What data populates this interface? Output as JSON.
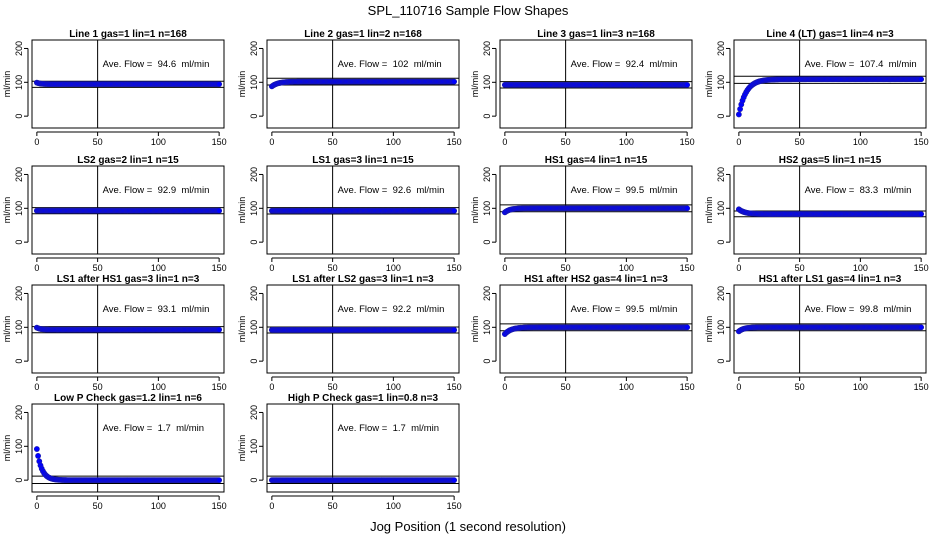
{
  "figure": {
    "title": "SPL_110716  Sample Flow Shapes",
    "xlabel": "Jog Position (1 second resolution)"
  },
  "chart_data": [
    {
      "type": "scatter",
      "title": "Line 1 gas=1 lin=1 n=168",
      "annotation": "Ave. Flow =  94.6  ml/min",
      "ylabel": "ml/min",
      "xticks": [
        0,
        50,
        100,
        150
      ],
      "yticks": [
        0,
        100,
        200
      ],
      "xlim": [
        -4,
        154
      ],
      "ylim": [
        -35,
        225
      ],
      "vline": 50,
      "hlines": [
        85,
        103
      ],
      "marker_color": "#0000ff",
      "shape": "flat",
      "start_y": 99,
      "plateau_y": 94.6,
      "tau": 3
    },
    {
      "type": "scatter",
      "title": "Line 2 gas=1 lin=2 n=168",
      "annotation": "Ave. Flow =  102  ml/min",
      "ylabel": "ml/min",
      "xticks": [
        0,
        50,
        100,
        150
      ],
      "yticks": [
        0,
        100,
        200
      ],
      "xlim": [
        -4,
        154
      ],
      "ylim": [
        -35,
        225
      ],
      "vline": 50,
      "hlines": [
        92,
        112
      ],
      "marker_color": "#0000ff",
      "shape": "rise",
      "start_y": 88,
      "plateau_y": 102,
      "tau": 5
    },
    {
      "type": "scatter",
      "title": "Line 3 gas=1 lin=3 n=168",
      "annotation": "Ave. Flow =  92.4  ml/min",
      "ylabel": "ml/min",
      "xticks": [
        0,
        50,
        100,
        150
      ],
      "yticks": [
        0,
        100,
        200
      ],
      "xlim": [
        -4,
        154
      ],
      "ylim": [
        -35,
        225
      ],
      "vline": 50,
      "hlines": [
        83,
        102
      ],
      "marker_color": "#0000ff",
      "shape": "flat",
      "start_y": 92.4,
      "plateau_y": 92.4,
      "tau": 3
    },
    {
      "type": "scatter",
      "title": "Line 4 (LT) gas=1 lin=4 n=3",
      "annotation": "Ave. Flow =  107.4  ml/min",
      "ylabel": "ml/min",
      "xticks": [
        0,
        50,
        100,
        150
      ],
      "yticks": [
        0,
        100,
        200
      ],
      "xlim": [
        -4,
        154
      ],
      "ylim": [
        -35,
        225
      ],
      "vline": 50,
      "hlines": [
        97,
        118
      ],
      "marker_color": "#0000ff",
      "shape": "rise",
      "start_y": 5,
      "plateau_y": 109,
      "tau": 6
    },
    {
      "type": "scatter",
      "title": "LS2 gas=2 lin=1 n=15",
      "annotation": "Ave. Flow =  92.9  ml/min",
      "ylabel": "ml/min",
      "xticks": [
        0,
        50,
        100,
        150
      ],
      "yticks": [
        0,
        100,
        200
      ],
      "xlim": [
        -4,
        154
      ],
      "ylim": [
        -35,
        225
      ],
      "vline": 50,
      "hlines": [
        84,
        102
      ],
      "marker_color": "#0000ff",
      "shape": "flat",
      "start_y": 92.9,
      "plateau_y": 92.9,
      "tau": 3
    },
    {
      "type": "scatter",
      "title": "LS1 gas=3 lin=1 n=15",
      "annotation": "Ave. Flow =  92.6  ml/min",
      "ylabel": "ml/min",
      "xticks": [
        0,
        50,
        100,
        150
      ],
      "yticks": [
        0,
        100,
        200
      ],
      "xlim": [
        -4,
        154
      ],
      "ylim": [
        -35,
        225
      ],
      "vline": 50,
      "hlines": [
        83,
        102
      ],
      "marker_color": "#0000ff",
      "shape": "flat",
      "start_y": 92.6,
      "plateau_y": 92.6,
      "tau": 3
    },
    {
      "type": "scatter",
      "title": "HS1 gas=4 lin=1 n=15",
      "annotation": "Ave. Flow =  99.5  ml/min",
      "ylabel": "ml/min",
      "xticks": [
        0,
        50,
        100,
        150
      ],
      "yticks": [
        0,
        100,
        200
      ],
      "xlim": [
        -4,
        154
      ],
      "ylim": [
        -35,
        225
      ],
      "vline": 50,
      "hlines": [
        90,
        110
      ],
      "marker_color": "#0000ff",
      "shape": "rise",
      "start_y": 88,
      "plateau_y": 100,
      "tau": 4
    },
    {
      "type": "scatter",
      "title": "HS2 gas=5 lin=1 n=15",
      "annotation": "Ave. Flow =  83.3  ml/min",
      "ylabel": "ml/min",
      "xticks": [
        0,
        50,
        100,
        150
      ],
      "yticks": [
        0,
        100,
        200
      ],
      "xlim": [
        -4,
        154
      ],
      "ylim": [
        -35,
        225
      ],
      "vline": 50,
      "hlines": [
        75,
        92
      ],
      "marker_color": "#0000ff",
      "shape": "fall",
      "start_y": 97,
      "plateau_y": 83,
      "tau": 5
    },
    {
      "type": "scatter",
      "title": "LS1 after HS1 gas=3 lin=1 n=3",
      "annotation": "Ave. Flow =  93.1  ml/min",
      "ylabel": "ml/min",
      "xticks": [
        0,
        50,
        100,
        150
      ],
      "yticks": [
        0,
        100,
        200
      ],
      "xlim": [
        -4,
        154
      ],
      "ylim": [
        -35,
        225
      ],
      "vline": 50,
      "hlines": [
        84,
        102
      ],
      "marker_color": "#0000ff",
      "shape": "fall",
      "start_y": 99,
      "plateau_y": 93,
      "tau": 3
    },
    {
      "type": "scatter",
      "title": "LS1 after LS2 gas=3 lin=1 n=3",
      "annotation": "Ave. Flow =  92.2  ml/min",
      "ylabel": "ml/min",
      "xticks": [
        0,
        50,
        100,
        150
      ],
      "yticks": [
        0,
        100,
        200
      ],
      "xlim": [
        -4,
        154
      ],
      "ylim": [
        -35,
        225
      ],
      "vline": 50,
      "hlines": [
        83,
        101
      ],
      "marker_color": "#0000ff",
      "shape": "flat",
      "start_y": 92.2,
      "plateau_y": 92.2,
      "tau": 3
    },
    {
      "type": "scatter",
      "title": "HS1 after HS2 gas=4 lin=1 n=3",
      "annotation": "Ave. Flow =  99.5  ml/min",
      "ylabel": "ml/min",
      "xticks": [
        0,
        50,
        100,
        150
      ],
      "yticks": [
        0,
        100,
        200
      ],
      "xlim": [
        -4,
        154
      ],
      "ylim": [
        -35,
        225
      ],
      "vline": 50,
      "hlines": [
        90,
        110
      ],
      "marker_color": "#0000ff",
      "shape": "rise",
      "start_y": 80,
      "plateau_y": 100,
      "tau": 5
    },
    {
      "type": "scatter",
      "title": "HS1 after LS1 gas=4 lin=1 n=3",
      "annotation": "Ave. Flow =  99.8  ml/min",
      "ylabel": "ml/min",
      "xticks": [
        0,
        50,
        100,
        150
      ],
      "yticks": [
        0,
        100,
        200
      ],
      "xlim": [
        -4,
        154
      ],
      "ylim": [
        -35,
        225
      ],
      "vline": 50,
      "hlines": [
        90,
        110
      ],
      "marker_color": "#0000ff",
      "shape": "rise",
      "start_y": 88,
      "plateau_y": 100,
      "tau": 4
    },
    {
      "type": "scatter",
      "title": "Low P Check gas=1.2 lin=1 n=6",
      "annotation": "Ave. Flow =  1.7  ml/min",
      "ylabel": "ml/min",
      "xticks": [
        0,
        50,
        100,
        150
      ],
      "yticks": [
        0,
        100,
        200
      ],
      "xlim": [
        -4,
        154
      ],
      "ylim": [
        -35,
        225
      ],
      "vline": 50,
      "hlines": [
        -10,
        12
      ],
      "marker_color": "#0000ff",
      "shape": "fall",
      "start_y": 92,
      "plateau_y": 0,
      "tau": 4
    },
    {
      "type": "scatter",
      "title": "High P Check gas=1 lin=0.8 n=3",
      "annotation": "Ave. Flow =  1.7  ml/min",
      "ylabel": "ml/min",
      "xticks": [
        0,
        50,
        100,
        150
      ],
      "yticks": [
        0,
        100,
        200
      ],
      "xlim": [
        -4,
        154
      ],
      "ylim": [
        -35,
        225
      ],
      "vline": 50,
      "hlines": [
        -10,
        12
      ],
      "marker_color": "#0000ff",
      "shape": "flat",
      "start_y": 0,
      "plateau_y": 0,
      "tau": 3
    }
  ]
}
